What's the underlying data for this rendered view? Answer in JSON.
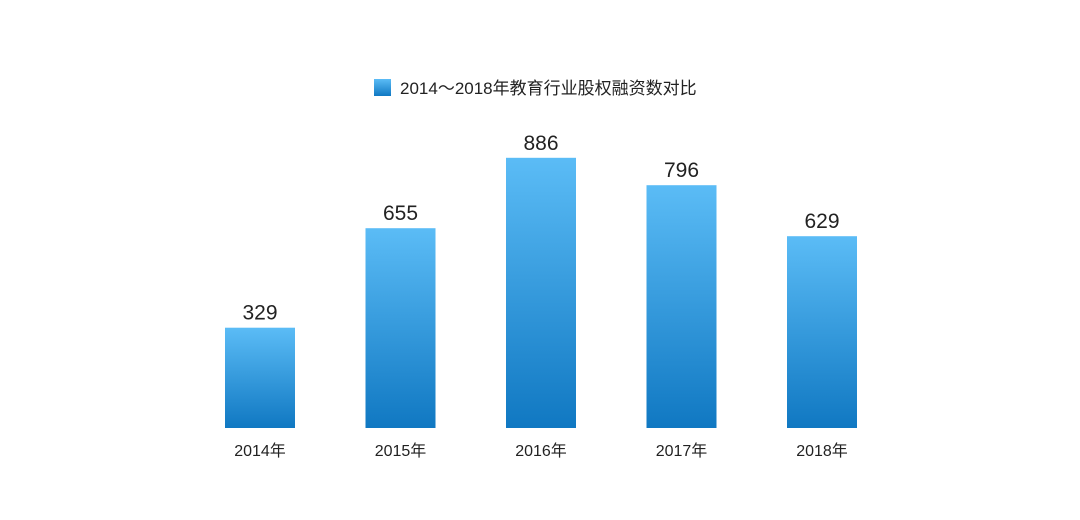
{
  "chart_data": {
    "type": "bar",
    "legend": {
      "label": "2014～2018年教育行业股权融资数对比",
      "placement": "top"
    },
    "categories": [
      "2014年",
      "2015年",
      "2016年",
      "2017年",
      "2018年"
    ],
    "series": [
      {
        "name": "2014～2018年教育行业股权融资数对比",
        "values": [
          329,
          655,
          886,
          796,
          629
        ]
      }
    ],
    "data_labels": [
      "329",
      "655",
      "886",
      "796",
      "629"
    ],
    "ylim": [
      0,
      1000
    ],
    "grid": false,
    "colors": {
      "bar_top": "#5bbcf6",
      "bar_bottom": "#1078c2",
      "text": "#222222"
    }
  }
}
